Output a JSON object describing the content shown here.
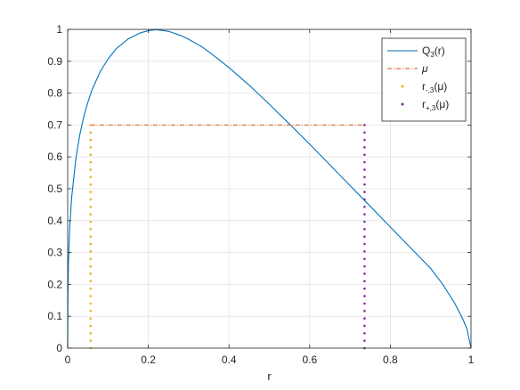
{
  "chart_data": {
    "type": "line",
    "title": "",
    "xlabel": "r",
    "ylabel": "",
    "xlim": [
      0,
      1
    ],
    "ylim": [
      0,
      1
    ],
    "grid": true,
    "legend_position": "top-right",
    "x_ticks": [
      "0",
      "0.2",
      "0.4",
      "0.6",
      "0.8",
      "1"
    ],
    "y_ticks": [
      "0",
      "0.1",
      "0.2",
      "0.3",
      "0.4",
      "0.5",
      "0.6",
      "0.7",
      "0.8",
      "0.9",
      "1"
    ],
    "series": [
      {
        "name": "Q3(r)",
        "label_main": "Q",
        "label_sub": "3",
        "label_tail": "(r)",
        "kind": "line",
        "color": "#0072BD",
        "x": [
          0,
          0.0005,
          0.002,
          0.005,
          0.01,
          0.02,
          0.03,
          0.04,
          0.05,
          0.06,
          0.08,
          0.1,
          0.12,
          0.15,
          0.18,
          0.2,
          0.22,
          0.25,
          0.28,
          0.3,
          0.3333,
          0.36,
          0.4,
          0.45,
          0.5,
          0.55,
          0.6,
          0.65,
          0.7,
          0.75,
          0.8,
          0.85,
          0.9,
          0.93,
          0.96,
          0.98,
          0.99,
          1.0
        ],
        "y": [
          0,
          0.159,
          0.274,
          0.378,
          0.474,
          0.592,
          0.669,
          0.727,
          0.771,
          0.809,
          0.866,
          0.907,
          0.939,
          0.97,
          0.989,
          0.996,
          0.999,
          0.994,
          0.981,
          0.969,
          0.945,
          0.92,
          0.88,
          0.825,
          0.765,
          0.703,
          0.64,
          0.575,
          0.51,
          0.445,
          0.38,
          0.315,
          0.25,
          0.2,
          0.14,
          0.09,
          0.06,
          0
        ]
      },
      {
        "name": "μ",
        "label_main": "μ",
        "label_sub": "",
        "label_tail": "",
        "kind": "dashdot",
        "color": "#D95319",
        "x": [
          0.057,
          0.736
        ],
        "y": [
          0.7,
          0.7
        ]
      },
      {
        "name": "r-,3(μ)",
        "label_main": "r",
        "label_sub": "-,3",
        "label_tail": "(μ)",
        "kind": "dotted",
        "color": "#EDB120",
        "x": [
          0.057,
          0.057
        ],
        "y": [
          0,
          0.7
        ]
      },
      {
        "name": "r+,3(μ)",
        "label_main": "r",
        "label_sub": "+,3",
        "label_tail": "(μ)",
        "kind": "dotted",
        "color": "#7E2F8E",
        "x": [
          0.736,
          0.736
        ],
        "y": [
          0,
          0.7
        ]
      }
    ]
  }
}
